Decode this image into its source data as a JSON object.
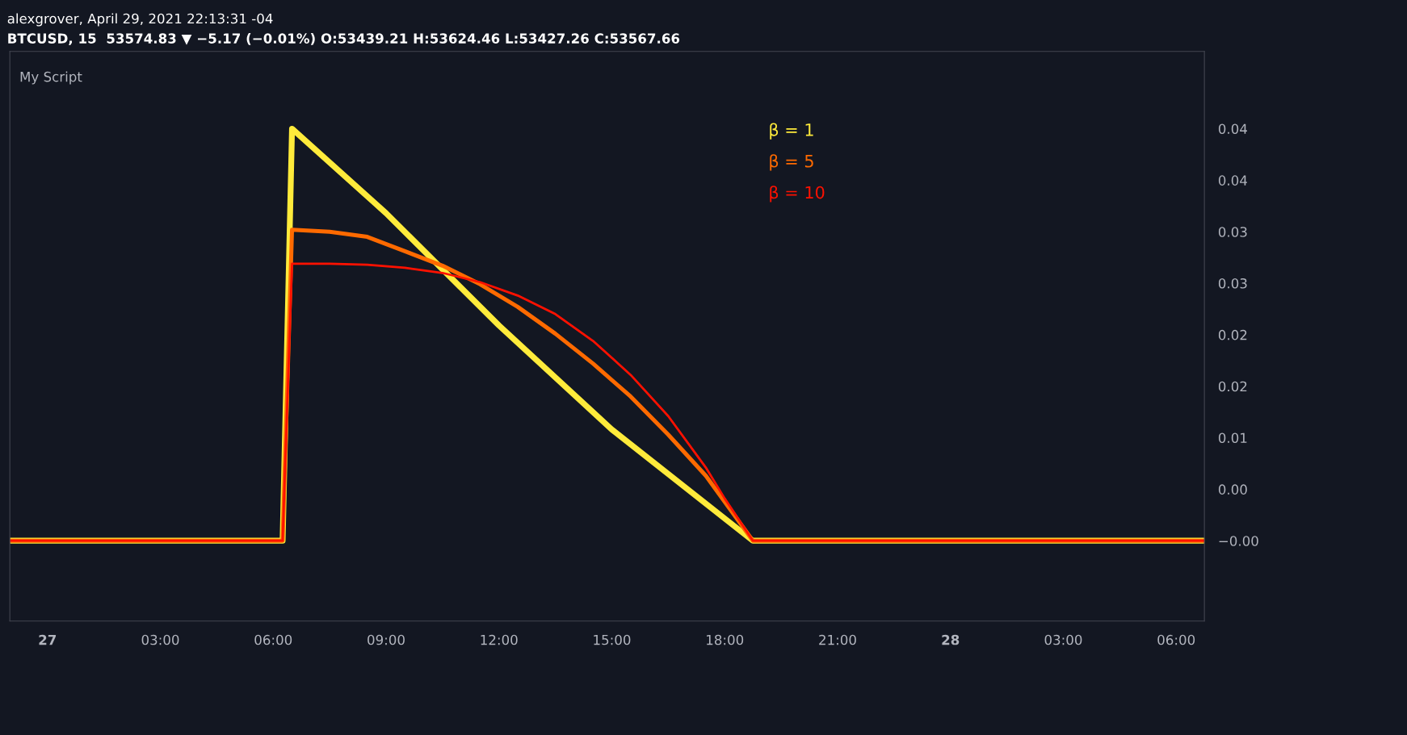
{
  "chart_data": {
    "type": "line",
    "title": "alexgrover, April 29, 2021 22:13:31 -04",
    "subtitle": "BTCUSD, 15  53574.83 ▼ −5.17 (−0.01%) O:53439.21 H:53624.46 L:53427.26 C:53567.66",
    "annotations": [
      "My Script"
    ],
    "series": [
      {
        "name": "β = 1",
        "color": "#ffeb3b",
        "x": [
          "2021-04-26T23:00",
          "2021-04-27T06:15",
          "2021-04-27T06:30",
          "2021-04-27T09:00",
          "2021-04-27T12:00",
          "2021-04-27T15:00",
          "2021-04-27T18:45",
          "2021-04-28T06:45"
        ],
        "values": [
          0,
          0,
          0.04,
          0.0318,
          0.0209,
          0.0108,
          0,
          0
        ]
      },
      {
        "name": "β = 5",
        "color": "#ff6a00",
        "x": [
          "2021-04-26T23:00",
          "2021-04-27T06:15",
          "2021-04-27T06:30",
          "2021-04-27T07:30",
          "2021-04-27T08:30",
          "2021-04-27T09:30",
          "2021-04-27T10:30",
          "2021-04-27T11:30",
          "2021-04-27T12:30",
          "2021-04-27T13:30",
          "2021-04-27T14:30",
          "2021-04-27T15:30",
          "2021-04-27T16:30",
          "2021-04-27T17:30",
          "2021-04-27T18:45",
          "2021-04-28T06:45"
        ],
        "values": [
          0,
          0,
          0.0302,
          0.03,
          0.0295,
          0.0281,
          0.0267,
          0.0249,
          0.0227,
          0.0201,
          0.0172,
          0.014,
          0.0103,
          0.0063,
          0,
          0
        ]
      },
      {
        "name": "β = 10",
        "color": "#ff1100",
        "x": [
          "2021-04-26T23:00",
          "2021-04-27T06:15",
          "2021-04-27T06:30",
          "2021-04-27T07:30",
          "2021-04-27T08:30",
          "2021-04-27T09:30",
          "2021-04-27T10:30",
          "2021-04-27T11:30",
          "2021-04-27T12:30",
          "2021-04-27T13:30",
          "2021-04-27T14:30",
          "2021-04-27T15:30",
          "2021-04-27T16:30",
          "2021-04-27T17:30",
          "2021-04-27T18:00",
          "2021-04-27T18:45",
          "2021-04-28T06:45"
        ],
        "values": [
          0,
          0,
          0.0269,
          0.0269,
          0.0268,
          0.0265,
          0.026,
          0.0251,
          0.0238,
          0.022,
          0.0194,
          0.0161,
          0.0121,
          0.0071,
          0.0041,
          0,
          0
        ]
      }
    ],
    "xlim": [
      "2021-04-26T23:00",
      "2021-04-28T06:45"
    ],
    "xticks": [
      {
        "value": "2021-04-27T00:00",
        "label": "27"
      },
      {
        "value": "2021-04-27T03:00",
        "label": "03:00"
      },
      {
        "value": "2021-04-27T06:00",
        "label": "06:00"
      },
      {
        "value": "2021-04-27T09:00",
        "label": "09:00"
      },
      {
        "value": "2021-04-27T12:00",
        "label": "12:00"
      },
      {
        "value": "2021-04-27T15:00",
        "label": "15:00"
      },
      {
        "value": "2021-04-27T18:00",
        "label": "18:00"
      },
      {
        "value": "2021-04-27T21:00",
        "label": "21:00"
      },
      {
        "value": "2021-04-28T00:00",
        "label": "28"
      },
      {
        "value": "2021-04-28T03:00",
        "label": "03:00"
      },
      {
        "value": "2021-04-28T06:00",
        "label": "06:00"
      }
    ],
    "ylim": [
      -0.0078,
      0.0475
    ],
    "yticks": [
      {
        "value": 0.04,
        "label": "0.04"
      },
      {
        "value": 0.035,
        "label": "0.04"
      },
      {
        "value": 0.03,
        "label": "0.03"
      },
      {
        "value": 0.025,
        "label": "0.03"
      },
      {
        "value": 0.02,
        "label": "0.02"
      },
      {
        "value": 0.015,
        "label": "0.02"
      },
      {
        "value": 0.01,
        "label": "0.01"
      },
      {
        "value": 0.005,
        "label": "0.00"
      },
      {
        "value": 0,
        "label": "−0.00"
      }
    ],
    "legend": "top right",
    "grid": false,
    "line_style": "solid",
    "marker": "none"
  }
}
